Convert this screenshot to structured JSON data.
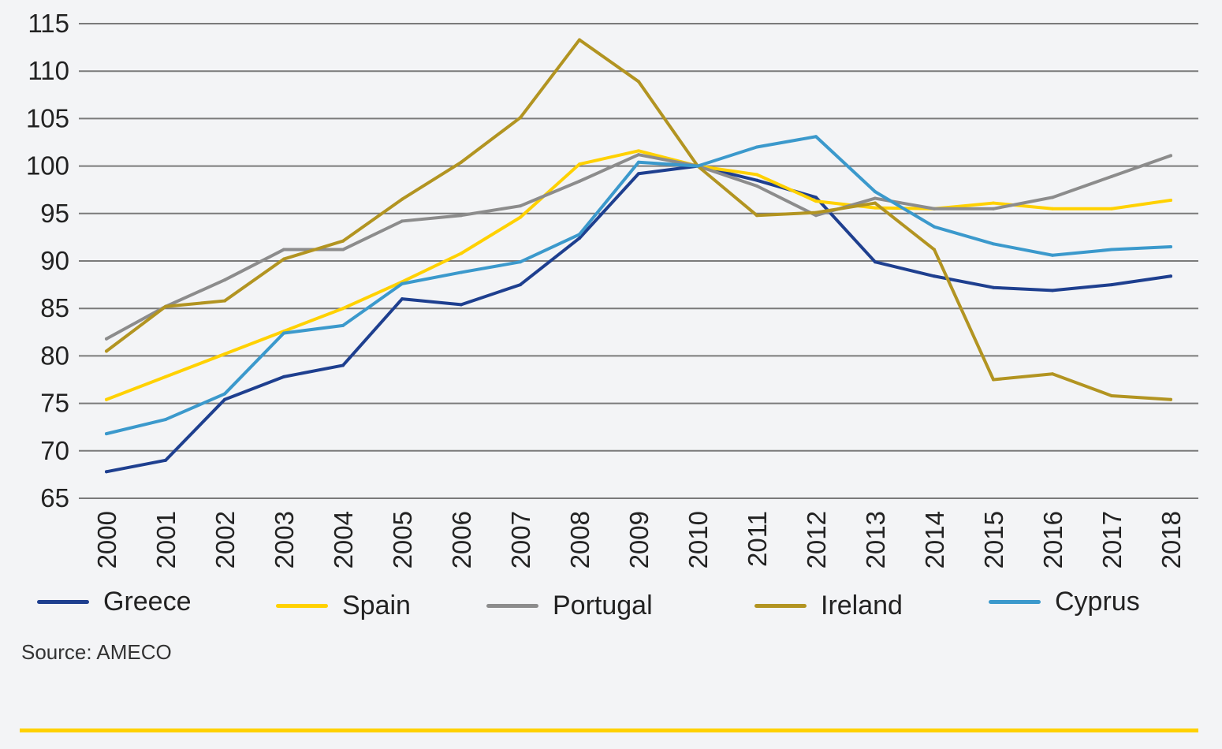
{
  "chart_data": {
    "type": "line",
    "categories": [
      "2000",
      "2001",
      "2002",
      "2003",
      "2004",
      "2005",
      "2006",
      "2007",
      "2008",
      "2009",
      "2010",
      "2011",
      "2012",
      "2013",
      "2014",
      "2015",
      "2016",
      "2017",
      "2018"
    ],
    "y_ticks": [
      "115",
      "110",
      "105",
      "100",
      "95",
      "90",
      "85",
      "80",
      "75",
      "70",
      "65"
    ],
    "ylim": [
      65,
      115
    ],
    "grid": true,
    "legend_position": "bottom",
    "series": [
      {
        "name": "Greece",
        "color": "#1e3f8f",
        "values": [
          67.8,
          69.0,
          75.4,
          77.8,
          79.0,
          86.0,
          85.4,
          87.5,
          92.4,
          99.2,
          100.0,
          98.5,
          96.7,
          89.9,
          88.4,
          87.2,
          86.9,
          87.5,
          88.4
        ]
      },
      {
        "name": "Spain",
        "color": "#ffd100",
        "values": [
          75.4,
          77.8,
          80.2,
          82.6,
          85.0,
          87.8,
          90.8,
          94.6,
          100.2,
          101.6,
          100.0,
          99.1,
          96.3,
          95.6,
          95.5,
          96.1,
          95.5,
          95.5,
          96.4
        ]
      },
      {
        "name": "Portugal",
        "color": "#8c8c8c",
        "values": [
          81.8,
          85.2,
          88.0,
          91.2,
          91.2,
          94.2,
          94.8,
          95.8,
          98.4,
          101.2,
          100.0,
          97.9,
          94.8,
          96.6,
          95.5,
          95.5,
          96.7,
          98.9,
          101.1
        ]
      },
      {
        "name": "Ireland",
        "color": "#b29421",
        "values": [
          80.5,
          85.2,
          85.8,
          90.2,
          92.1,
          96.5,
          100.4,
          105.1,
          113.3,
          108.9,
          100.0,
          94.8,
          95.1,
          96.1,
          91.2,
          77.5,
          78.1,
          75.8,
          75.4
        ]
      },
      {
        "name": "Cyprus",
        "color": "#3b99cc",
        "values": [
          71.8,
          73.3,
          76.0,
          82.4,
          83.2,
          87.6,
          88.8,
          89.9,
          92.8,
          100.4,
          100.0,
          102.0,
          103.1,
          97.3,
          93.6,
          91.8,
          90.6,
          91.2,
          91.5
        ]
      }
    ]
  },
  "source": "Source: AMECO",
  "colors": {
    "background": "#f3f4f6",
    "grid": "#7a7a7a",
    "accent_rule": "#ffd100"
  }
}
